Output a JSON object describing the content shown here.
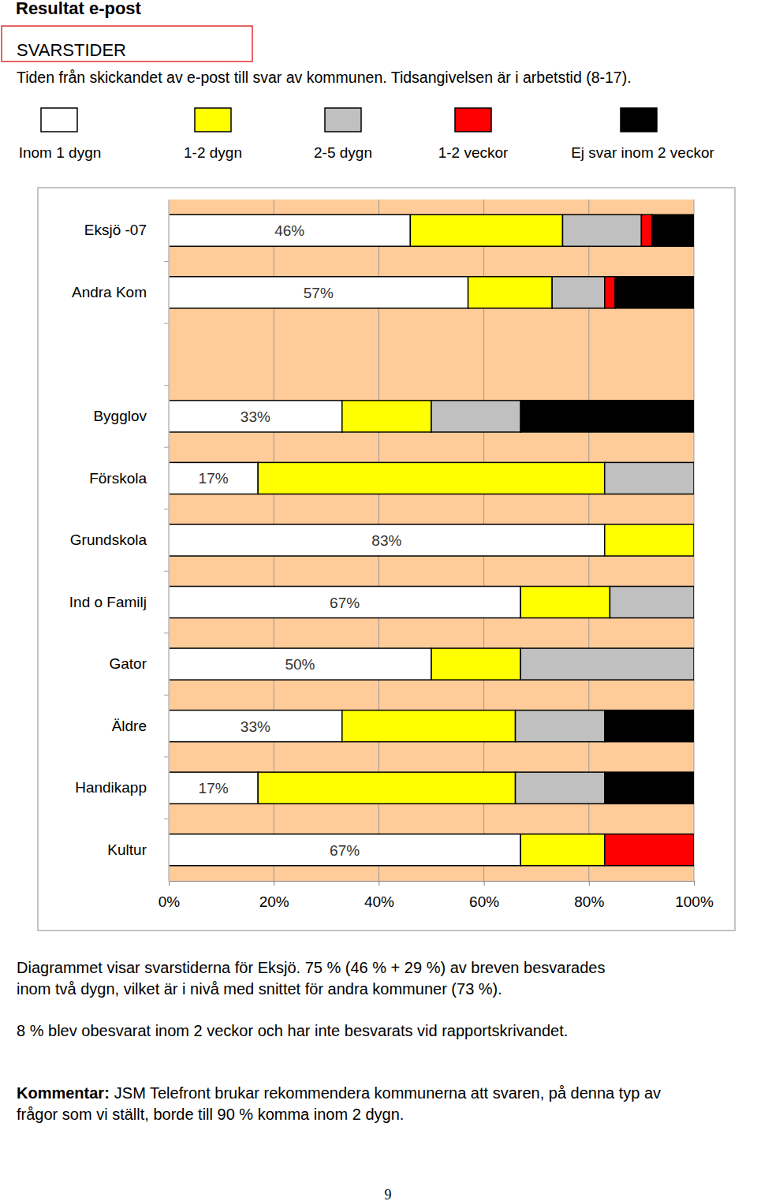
{
  "page": {
    "header": "Resultat e-post",
    "paragraphs": [
      [
        "Diagrammet visar svarstiderna för Eksjö. 75 % (46 % + 29 %) av breven besvarades",
        "inom två dygn, vilket är i nivå med snittet för andra kommuner (73 %)."
      ],
      [
        "8 % blev obesvarat inom 2 veckor och har inte besvarats vid rapportskrivandet."
      ]
    ],
    "comment": {
      "label": "Kommentar:",
      "lines": [
        "JSM Telefront brukar rekommendera kommunerna att svaren, på denna typ av",
        "frågor som vi ställt, borde till 90 % komma inom 2 dygn."
      ]
    },
    "page_number": "9"
  },
  "chart_data": {
    "type": "bar",
    "orientation": "horizontal",
    "stacked": true,
    "grid": true,
    "legend": "top",
    "data_labels": true,
    "title": "SVARSTIDER",
    "subtitle": "Tiden från skickandet av e-post till svar av kommunen. Tidsangivelsen är i arbetstid (8-17).",
    "categories": [
      "Eksjö -07",
      "Andra Kom",
      null,
      "Bygglov",
      "Förskola",
      "Grundskola",
      "Ind o Familj",
      "Gator",
      "Äldre",
      "Handikapp",
      "Kultur"
    ],
    "xlim": [
      0,
      100
    ],
    "xticks": [
      {
        "value": 0,
        "label": "0%"
      },
      {
        "value": 20,
        "label": "20%"
      },
      {
        "value": 40,
        "label": "40%"
      },
      {
        "value": 60,
        "label": "60%"
      },
      {
        "value": 80,
        "label": "80%"
      },
      {
        "value": 100,
        "label": "100%"
      }
    ],
    "series": [
      {
        "name": "Inom 1 dygn",
        "color": "#ffffff",
        "values": [
          46,
          57,
          null,
          33,
          17,
          83,
          67,
          50,
          33,
          17,
          67
        ],
        "value_labels": [
          "46%",
          "57%",
          null,
          "33%",
          "17%",
          "83%",
          "67%",
          "50%",
          "33%",
          "17%",
          "67%"
        ]
      },
      {
        "name": "1-2 dygn",
        "color": "#ffff00",
        "values": [
          29,
          16,
          null,
          17,
          66,
          17,
          17,
          17,
          33,
          49,
          16
        ]
      },
      {
        "name": "2-5 dygn",
        "color": "#c0c0c0",
        "values": [
          15,
          10,
          null,
          17,
          17,
          0,
          16,
          33,
          17,
          17,
          0
        ]
      },
      {
        "name": "1-2 veckor",
        "color": "#ff0000",
        "values": [
          2,
          2,
          null,
          0,
          0,
          0,
          0,
          0,
          0,
          0,
          17
        ]
      },
      {
        "name": "Ej svar inom 2 veckor",
        "color": "#000000",
        "values": [
          8,
          15,
          null,
          33,
          0,
          0,
          0,
          0,
          17,
          17,
          0
        ]
      }
    ]
  }
}
